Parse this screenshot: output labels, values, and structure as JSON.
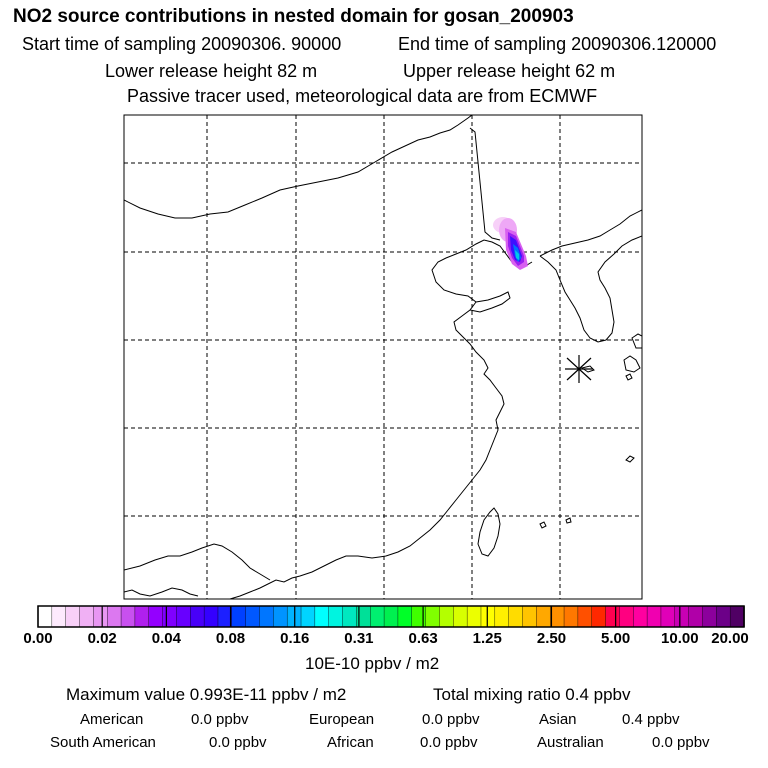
{
  "header": {
    "title": "NO2 source contributions in nested domain for gosan_200903",
    "start_time": "Start time of sampling 20090306. 90000",
    "end_time": "End time of sampling 20090306.120000",
    "lower_release": "Lower release height   82 m",
    "upper_release": "Upper release height   62 m",
    "tracer_note": "Passive tracer used, meteorological data are from ECMWF"
  },
  "colorbar": {
    "tick_labels": [
      "0.00",
      "0.02",
      "0.04",
      "0.08",
      "0.16",
      "0.31",
      "0.63",
      "1.25",
      "2.50",
      "5.00",
      "10.00",
      "20.00"
    ],
    "unit": "10E-10 ppbv / m2",
    "colors": [
      "#ffffff",
      "#fdeafd",
      "#f8d0f8",
      "#f0b0f4",
      "#e896f2",
      "#dc78f0",
      "#c850ef",
      "#b020ee",
      "#9400ff",
      "#8000ff",
      "#6800ff",
      "#4800f8",
      "#3400ff",
      "#1c20ff",
      "#0040ff",
      "#0058ff",
      "#0076ff",
      "#0094ff",
      "#00b4ff",
      "#00d4ff",
      "#00ffff",
      "#00f4e0",
      "#00e8c0",
      "#00e098",
      "#00f070",
      "#00f050",
      "#00ff28",
      "#40ff00",
      "#80ff00",
      "#b4ff00",
      "#d8ff00",
      "#ecff00",
      "#ffff00",
      "#fff000",
      "#ffdc00",
      "#ffc400",
      "#ffa800",
      "#ff9000",
      "#ff7800",
      "#ff5000",
      "#ff2800",
      "#ff0050",
      "#ff0080",
      "#ff00a0",
      "#f000b0",
      "#e000b8",
      "#c800b4",
      "#b000a8",
      "#8c009c",
      "#6c0088",
      "#500064"
    ]
  },
  "stats": {
    "maximum_value": "Maximum value  0.993E-11 ppbv / m2",
    "total_mixing": "Total mixing ratio        0.4 ppbv",
    "regions": [
      {
        "name": "American",
        "value": "0.0 ppbv"
      },
      {
        "name": "European",
        "value": "0.0 ppbv"
      },
      {
        "name": "Asian",
        "value": "0.4 ppbv"
      },
      {
        "name": "South American",
        "value": "0.0 ppbv"
      },
      {
        "name": "African",
        "value": "0.0 ppbv"
      },
      {
        "name": "Australian",
        "value": "0.0 ppbv"
      }
    ]
  },
  "map": {
    "receptor_marker": "gosan-receptor-star",
    "plume_colors": [
      "#f4b8f8",
      "#e070f0",
      "#a020f0",
      "#3c00ff",
      "#0060ff",
      "#00c8e8"
    ]
  }
}
